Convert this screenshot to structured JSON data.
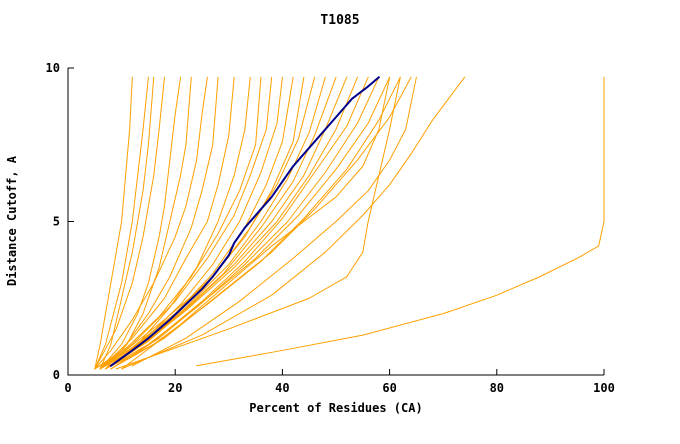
{
  "chart_data": {
    "type": "line",
    "title": "T1085",
    "xlabel": "Percent of Residues (CA)",
    "ylabel": "Distance Cutoff, A",
    "xlim": [
      0,
      100
    ],
    "ylim": [
      0,
      10
    ],
    "xticks": [
      0,
      20,
      40,
      60,
      80,
      100
    ],
    "yticks": [
      0,
      5,
      10
    ],
    "grid": false,
    "legend": "none",
    "colors": {
      "model": "#FFA000",
      "highlight": "#00008B",
      "axis": "#000000"
    },
    "series": [
      {
        "color": "model",
        "points": [
          [
            5,
            0.2
          ],
          [
            6,
            1
          ],
          [
            7,
            2
          ],
          [
            8,
            3
          ],
          [
            9,
            4
          ],
          [
            10,
            5
          ],
          [
            10.5,
            6
          ],
          [
            11,
            7
          ],
          [
            11.5,
            8
          ],
          [
            12,
            9.7
          ]
        ]
      },
      {
        "color": "model",
        "points": [
          [
            5,
            0.2
          ],
          [
            7,
            1
          ],
          [
            8.5,
            2
          ],
          [
            10,
            3
          ],
          [
            11,
            4
          ],
          [
            12,
            5
          ],
          [
            13,
            6.5
          ],
          [
            14,
            8
          ],
          [
            15,
            9.7
          ]
        ]
      },
      {
        "color": "model",
        "points": [
          [
            6,
            0.2
          ],
          [
            8,
            1
          ],
          [
            10,
            2.5
          ],
          [
            12,
            4
          ],
          [
            13,
            5
          ],
          [
            14,
            6
          ],
          [
            15,
            7.5
          ],
          [
            16,
            9.7
          ]
        ]
      },
      {
        "color": "model",
        "points": [
          [
            5,
            0.2
          ],
          [
            9,
            1.5
          ],
          [
            12,
            3
          ],
          [
            14,
            4.5
          ],
          [
            15,
            5.5
          ],
          [
            16,
            6.5
          ],
          [
            17,
            8
          ],
          [
            18,
            9.7
          ]
        ]
      },
      {
        "color": "model",
        "points": [
          [
            6,
            0.2
          ],
          [
            10,
            1
          ],
          [
            13,
            2
          ],
          [
            15,
            3
          ],
          [
            17,
            4.5
          ],
          [
            18,
            5.5
          ],
          [
            19,
            7
          ],
          [
            20,
            8.5
          ],
          [
            21,
            9.7
          ]
        ]
      },
      {
        "color": "model",
        "points": [
          [
            7,
            0.2
          ],
          [
            11,
            1
          ],
          [
            14,
            2
          ],
          [
            17,
            3.5
          ],
          [
            19,
            5
          ],
          [
            21,
            6.5
          ],
          [
            22,
            7.5
          ],
          [
            23,
            9.7
          ]
        ]
      },
      {
        "color": "model",
        "points": [
          [
            5,
            0.2
          ],
          [
            8,
            0.8
          ],
          [
            12,
            1.8
          ],
          [
            16,
            3
          ],
          [
            20,
            4.5
          ],
          [
            22,
            5.5
          ],
          [
            24,
            7
          ],
          [
            25,
            8.5
          ],
          [
            26,
            9.7
          ]
        ]
      },
      {
        "color": "model",
        "points": [
          [
            6,
            0.2
          ],
          [
            10,
            0.8
          ],
          [
            15,
            2
          ],
          [
            19,
            3.2
          ],
          [
            23,
            4.8
          ],
          [
            25,
            6
          ],
          [
            27,
            7.5
          ],
          [
            28,
            9.7
          ]
        ]
      },
      {
        "color": "model",
        "points": [
          [
            6,
            0.2
          ],
          [
            12,
            1.2
          ],
          [
            18,
            2.5
          ],
          [
            22,
            3.8
          ],
          [
            26,
            5
          ],
          [
            28,
            6.2
          ],
          [
            30,
            7.8
          ],
          [
            31,
            9.7
          ]
        ]
      },
      {
        "color": "model",
        "points": [
          [
            7,
            0.2
          ],
          [
            13,
            1
          ],
          [
            19,
            2.2
          ],
          [
            24,
            3.5
          ],
          [
            28,
            5
          ],
          [
            31,
            6.5
          ],
          [
            33,
            8
          ],
          [
            34,
            9.7
          ]
        ]
      },
      {
        "color": "model",
        "points": [
          [
            5,
            0.2
          ],
          [
            11,
            0.9
          ],
          [
            17,
            1.9
          ],
          [
            23,
            3.2
          ],
          [
            28,
            4.6
          ],
          [
            32,
            6
          ],
          [
            35,
            7.5
          ],
          [
            36,
            9.7
          ]
        ]
      },
      {
        "color": "model",
        "points": [
          [
            6,
            0.2
          ],
          [
            12,
            1
          ],
          [
            20,
            2.4
          ],
          [
            26,
            3.8
          ],
          [
            31,
            5.2
          ],
          [
            34,
            6.5
          ],
          [
            37,
            8
          ],
          [
            38,
            9.7
          ]
        ]
      },
      {
        "color": "model",
        "points": [
          [
            7,
            0.2
          ],
          [
            14,
            1.1
          ],
          [
            21,
            2.3
          ],
          [
            27,
            3.6
          ],
          [
            32,
            5
          ],
          [
            36,
            6.6
          ],
          [
            39,
            8.2
          ],
          [
            40,
            9.7
          ]
        ]
      },
      {
        "color": "model",
        "points": [
          [
            6,
            0.2
          ],
          [
            13,
            1
          ],
          [
            20,
            2
          ],
          [
            27,
            3.3
          ],
          [
            33,
            4.8
          ],
          [
            37,
            6.2
          ],
          [
            40,
            7.6
          ],
          [
            42,
            9.7
          ]
        ]
      },
      {
        "color": "model",
        "points": [
          [
            5,
            0.2
          ],
          [
            10,
            0.7
          ],
          [
            18,
            1.8
          ],
          [
            26,
            3
          ],
          [
            33,
            4.5
          ],
          [
            38,
            6
          ],
          [
            42,
            7.6
          ],
          [
            44,
            9.7
          ]
        ]
      },
      {
        "color": "model",
        "points": [
          [
            6,
            0.2
          ],
          [
            12,
            0.9
          ],
          [
            20,
            2
          ],
          [
            28,
            3.4
          ],
          [
            34,
            4.8
          ],
          [
            39,
            6.2
          ],
          [
            43,
            7.7
          ],
          [
            46,
            9.7
          ]
        ]
      },
      {
        "color": "model",
        "points": [
          [
            7,
            0.2
          ],
          [
            14,
            1
          ],
          [
            22,
            2.2
          ],
          [
            30,
            3.6
          ],
          [
            36,
            5
          ],
          [
            41,
            6.4
          ],
          [
            45,
            7.9
          ],
          [
            48,
            9.7
          ]
        ]
      },
      {
        "color": "model",
        "points": [
          [
            6,
            0.2
          ],
          [
            13,
            0.9
          ],
          [
            21,
            2
          ],
          [
            29,
            3.3
          ],
          [
            36,
            4.8
          ],
          [
            42,
            6.3
          ],
          [
            46,
            7.8
          ],
          [
            50,
            9.7
          ]
        ]
      },
      {
        "color": "model",
        "points": [
          [
            7,
            0.2
          ],
          [
            15,
            1.1
          ],
          [
            23,
            2.3
          ],
          [
            31,
            3.6
          ],
          [
            38,
            5
          ],
          [
            44,
            6.5
          ],
          [
            48,
            8
          ],
          [
            52,
            9.7
          ]
        ]
      },
      {
        "color": "model",
        "points": [
          [
            6,
            0.2
          ],
          [
            14,
            1
          ],
          [
            22,
            2.1
          ],
          [
            31,
            3.5
          ],
          [
            39,
            5
          ],
          [
            45,
            6.5
          ],
          [
            50,
            8
          ],
          [
            54,
            9.7
          ]
        ]
      },
      {
        "color": "model",
        "points": [
          [
            8,
            0.2
          ],
          [
            16,
            1.1
          ],
          [
            25,
            2.4
          ],
          [
            33,
            3.7
          ],
          [
            40,
            5.1
          ],
          [
            46,
            6.6
          ],
          [
            52,
            8.1
          ],
          [
            56,
            9.7
          ]
        ]
      },
      {
        "color": "model",
        "points": [
          [
            7,
            0.2
          ],
          [
            15,
            1
          ],
          [
            24,
            2.2
          ],
          [
            33,
            3.6
          ],
          [
            41,
            5
          ],
          [
            48,
            6.6
          ],
          [
            54,
            8.2
          ],
          [
            58,
            9.7
          ]
        ]
      },
      {
        "color": "model",
        "points": [
          [
            8,
            0.2
          ],
          [
            17,
            1.2
          ],
          [
            26,
            2.5
          ],
          [
            35,
            3.8
          ],
          [
            43,
            5.2
          ],
          [
            50,
            6.7
          ],
          [
            56,
            8.2
          ],
          [
            60,
            9.7
          ]
        ]
      },
      {
        "color": "model",
        "points": [
          [
            7,
            0.2
          ],
          [
            16,
            1
          ],
          [
            26,
            2.3
          ],
          [
            36,
            3.7
          ],
          [
            44,
            5.1
          ],
          [
            52,
            6.7
          ],
          [
            58,
            8.3
          ],
          [
            62,
            9.7
          ]
        ]
      },
      {
        "color": "model",
        "points": [
          [
            8,
            0.2
          ],
          [
            18,
            1.2
          ],
          [
            28,
            2.6
          ],
          [
            38,
            4
          ],
          [
            46,
            5.4
          ],
          [
            54,
            7
          ],
          [
            60,
            8.4
          ],
          [
            64,
            9.7
          ]
        ]
      },
      {
        "color": "model",
        "points": [
          [
            10,
            0.2
          ],
          [
            20,
            1.5
          ],
          [
            30,
            3
          ],
          [
            38,
            4.2
          ],
          [
            44,
            5
          ],
          [
            50,
            5.8
          ],
          [
            55,
            6.8
          ],
          [
            58,
            8
          ],
          [
            60,
            9.7
          ]
        ]
      },
      {
        "color": "model",
        "points": [
          [
            12,
            0.3
          ],
          [
            22,
            1.2
          ],
          [
            32,
            2.4
          ],
          [
            42,
            3.8
          ],
          [
            50,
            5
          ],
          [
            56,
            6
          ],
          [
            60,
            7
          ],
          [
            63,
            8
          ],
          [
            65,
            9.7
          ]
        ]
      },
      {
        "color": "model",
        "points": [
          [
            10,
            0.2
          ],
          [
            25,
            1.3
          ],
          [
            38,
            2.6
          ],
          [
            48,
            4
          ],
          [
            55,
            5.2
          ],
          [
            60,
            6.2
          ],
          [
            64,
            7.2
          ],
          [
            68,
            8.3
          ],
          [
            74,
            9.7
          ]
        ]
      },
      {
        "color": "model",
        "points": [
          [
            9,
            0.2
          ],
          [
            30,
            1.5
          ],
          [
            45,
            2.5
          ],
          [
            52,
            3.2
          ],
          [
            55,
            4
          ],
          [
            56,
            5
          ],
          [
            58,
            6.5
          ],
          [
            60,
            8
          ],
          [
            62,
            9.7
          ]
        ]
      },
      {
        "color": "model",
        "points": [
          [
            24,
            0.3
          ],
          [
            40,
            0.8
          ],
          [
            55,
            1.3
          ],
          [
            70,
            2
          ],
          [
            80,
            2.6
          ],
          [
            88,
            3.2
          ],
          [
            95,
            3.8
          ],
          [
            99,
            4.2
          ],
          [
            100,
            5
          ],
          [
            100,
            9.7
          ]
        ]
      },
      {
        "color": "highlight",
        "points": [
          [
            8,
            0.3
          ],
          [
            12,
            0.8
          ],
          [
            15,
            1.2
          ],
          [
            19,
            1.8
          ],
          [
            22,
            2.3
          ],
          [
            25,
            2.8
          ],
          [
            27,
            3.2
          ],
          [
            30,
            3.9
          ],
          [
            31,
            4.3
          ],
          [
            33,
            4.8
          ],
          [
            36,
            5.4
          ],
          [
            38,
            5.8
          ],
          [
            40,
            6.3
          ],
          [
            42,
            6.8
          ],
          [
            44,
            7.2
          ],
          [
            47,
            7.8
          ],
          [
            50,
            8.4
          ],
          [
            53,
            9.0
          ],
          [
            56,
            9.4
          ],
          [
            58,
            9.7
          ]
        ]
      }
    ]
  }
}
